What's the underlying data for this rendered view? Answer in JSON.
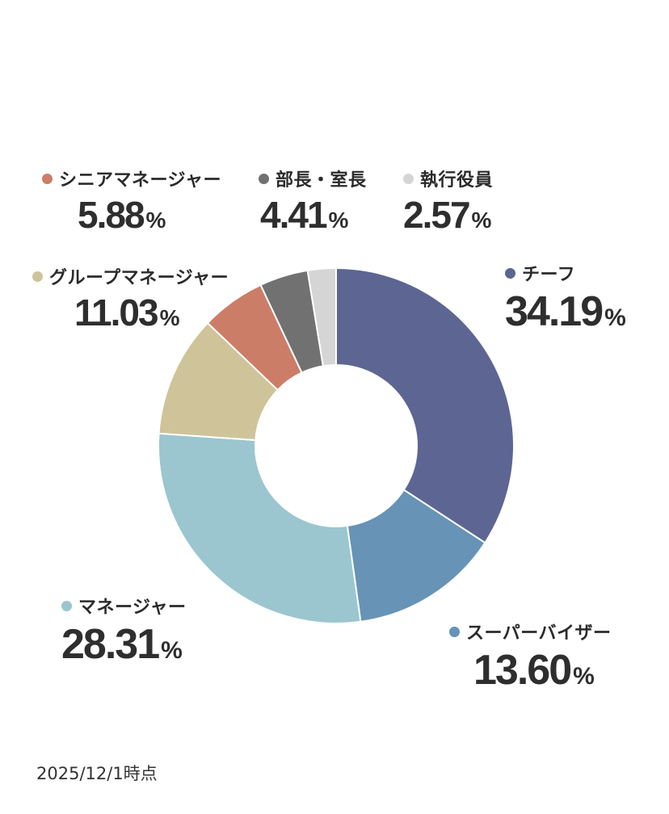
{
  "chart_data": {
    "type": "pie",
    "title": "",
    "donut": true,
    "slices": [
      {
        "label": "チーフ",
        "value": 34.19,
        "color": "#5d6593"
      },
      {
        "label": "スーパーバイザー",
        "value": 13.6,
        "color": "#6693b6"
      },
      {
        "label": "マネージャー",
        "value": 28.31,
        "color": "#9bc6cf"
      },
      {
        "label": "グループマネージャー",
        "value": 11.03,
        "color": "#cfc39a"
      },
      {
        "label": "シニアマネージャー",
        "value": 5.88,
        "color": "#cc7d68"
      },
      {
        "label": "部長・室長",
        "value": 4.41,
        "color": "#717171"
      },
      {
        "label": "執行役員",
        "value": 2.57,
        "color": "#d5d5d5"
      }
    ],
    "value_texts": [
      "34.19",
      "13.60",
      "28.31",
      "11.03",
      "5.88",
      "4.41",
      "2.57"
    ],
    "unit": "%"
  },
  "footnote": "2025/12/1時点"
}
